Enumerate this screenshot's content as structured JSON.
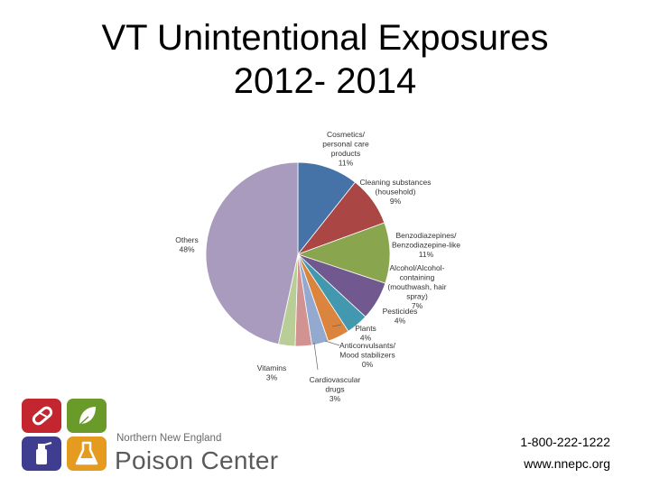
{
  "title": {
    "line1": "VT Unintentional Exposures",
    "line2": "2012- 2014"
  },
  "chart_data": {
    "type": "pie",
    "slices": [
      {
        "label_lines": [
          "Cosmetics/",
          "personal care",
          "products",
          "11%"
        ],
        "value": 11,
        "color": "#4572a7"
      },
      {
        "label_lines": [
          "Cleaning substances",
          "(household)",
          "9%"
        ],
        "value": 9,
        "color": "#aa4643"
      },
      {
        "label_lines": [
          "Benzodiazepines/",
          "Benzodiazepine-like",
          "11%"
        ],
        "value": 11,
        "color": "#89a54e"
      },
      {
        "label_lines": [
          "Alcohol/Alcohol-",
          "containing",
          "(mouthwash, hair",
          "spray)",
          "7%"
        ],
        "value": 7,
        "color": "#71588f"
      },
      {
        "label_lines": [
          "Pesticides",
          "4%"
        ],
        "value": 4,
        "color": "#4198af"
      },
      {
        "label_lines": [
          "Plants",
          "4%"
        ],
        "value": 4,
        "color": "#db843d"
      },
      {
        "label_lines": [
          "Anticonvulsants/",
          "Mood stabilizers",
          "0%"
        ],
        "value": 0,
        "color": "#93a9cf"
      },
      {
        "label_lines": [
          "Cardiovascular",
          "drugs",
          "3%"
        ],
        "value": 3,
        "color": "#93a9cf"
      },
      {
        "label_lines": [
          "",
          "",
          ""
        ],
        "value": 3,
        "color": "#d19392"
      },
      {
        "label_lines": [
          "Vitamins",
          "3%"
        ],
        "value": 3,
        "color": "#b9cd96"
      },
      {
        "label_lines": [
          "Others",
          "48%"
        ],
        "value": 48,
        "color": "#a99bbd"
      }
    ]
  },
  "logo": {
    "line1": "Northern New England",
    "line2": "Poison Center",
    "tile_colors": [
      "#c3262e",
      "#6a9a2a",
      "#3f3d8f",
      "#e49b1f"
    ],
    "tile_icons": [
      "pill-icon",
      "leaf-icon",
      "spray-bottle-icon",
      "flask-icon"
    ]
  },
  "contact": {
    "phone": "1-800-222-1222",
    "website": "www.nnepc.org"
  }
}
